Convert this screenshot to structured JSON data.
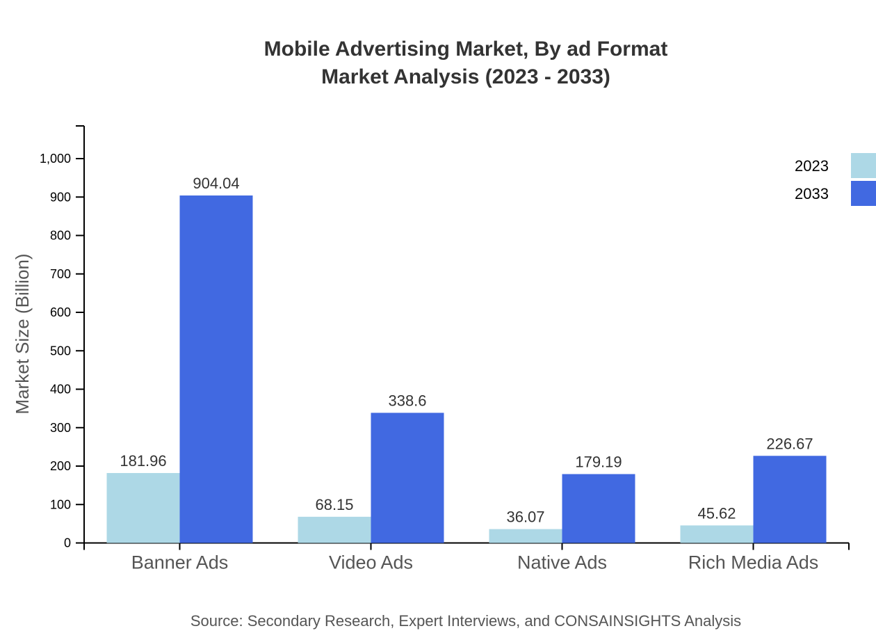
{
  "chart_data": {
    "type": "bar",
    "title_line1": "Mobile Advertising Market, By ad Format",
    "title_line2": "Market Analysis (2023 - 2033)",
    "xlabel": "",
    "ylabel": "Market Size (Billion)",
    "ylim": [
      0,
      1080
    ],
    "yticks": [
      0,
      100,
      200,
      300,
      400,
      500,
      600,
      700,
      800,
      900,
      1000
    ],
    "ytick_labels": [
      "0",
      "100",
      "200",
      "300",
      "400",
      "500",
      "600",
      "700",
      "800",
      "900",
      "1,000"
    ],
    "categories": [
      "Banner Ads",
      "Video Ads",
      "Native Ads",
      "Rich Media Ads"
    ],
    "series": [
      {
        "name": "2023",
        "color": "#add8e6",
        "values": [
          181.96,
          68.15,
          36.07,
          45.62
        ],
        "labels": [
          "181.96",
          "68.15",
          "36.07",
          "45.62"
        ]
      },
      {
        "name": "2033",
        "color": "#4169e1",
        "values": [
          904.04,
          338.6,
          179.19,
          226.67
        ],
        "labels": [
          "904.04",
          "338.6",
          "179.19",
          "226.67"
        ]
      }
    ],
    "legend_position": "top-right",
    "grid": false,
    "source": "Source: Secondary Research, Expert Interviews, and CONSAINSIGHTS Analysis"
  }
}
